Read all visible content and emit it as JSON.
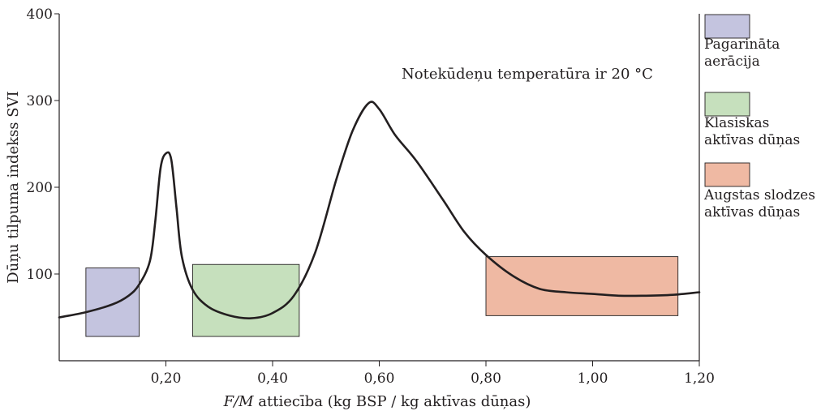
{
  "chart_data": {
    "type": "line",
    "annotation": "Notekūdeņu temperatūra ir 20 °C",
    "xlabel_prefix": "F/M",
    "xlabel_rest": " attiecība (kg BSP / kg aktīvas dūņas)",
    "ylabel": "Dūņu tilpuma indekss SVI",
    "xlim": [
      0,
      1.2
    ],
    "ylim": [
      0,
      400
    ],
    "x_ticks": [
      0.2,
      0.4,
      0.6,
      0.8,
      1.0,
      1.2
    ],
    "x_tick_labels": [
      "0,20",
      "0,40",
      "0,60",
      "0,80",
      "1,00",
      "1,20"
    ],
    "y_ticks": [
      100,
      200,
      300,
      400
    ],
    "y_tick_labels": [
      "100",
      "200",
      "300",
      "400"
    ],
    "grid": false,
    "series": [
      {
        "color": "#231f20",
        "points": [
          [
            0.0,
            50
          ],
          [
            0.05,
            56
          ],
          [
            0.1,
            65
          ],
          [
            0.13,
            75
          ],
          [
            0.15,
            88
          ],
          [
            0.17,
            115
          ],
          [
            0.18,
            160
          ],
          [
            0.19,
            222
          ],
          [
            0.2,
            239
          ],
          [
            0.21,
            232
          ],
          [
            0.22,
            175
          ],
          [
            0.23,
            120
          ],
          [
            0.25,
            82
          ],
          [
            0.28,
            62
          ],
          [
            0.32,
            52
          ],
          [
            0.36,
            49
          ],
          [
            0.4,
            55
          ],
          [
            0.44,
            75
          ],
          [
            0.48,
            125
          ],
          [
            0.52,
            210
          ],
          [
            0.55,
            265
          ],
          [
            0.58,
            297
          ],
          [
            0.6,
            290
          ],
          [
            0.63,
            260
          ],
          [
            0.67,
            230
          ],
          [
            0.72,
            185
          ],
          [
            0.76,
            148
          ],
          [
            0.8,
            122
          ],
          [
            0.85,
            98
          ],
          [
            0.9,
            83
          ],
          [
            0.95,
            79
          ],
          [
            1.0,
            77
          ],
          [
            1.05,
            75
          ],
          [
            1.1,
            75
          ],
          [
            1.15,
            76
          ],
          [
            1.2,
            79
          ]
        ]
      }
    ],
    "regions": [
      {
        "name": "Pagarināta aerācija",
        "x": [
          0.05,
          0.15
        ],
        "y": [
          28,
          107
        ],
        "color": "#c4c4df"
      },
      {
        "name": "Klasiskas aktīvas dūņas",
        "x": [
          0.25,
          0.45
        ],
        "y": [
          28,
          111
        ],
        "color": "#c6e0bd"
      },
      {
        "name": "Augstas slodzes aktīvas dūņas",
        "x": [
          0.8,
          1.16
        ],
        "y": [
          52,
          120
        ],
        "color": "#efb9a3"
      }
    ],
    "legend": {
      "placement": "right",
      "entries": [
        {
          "lines": [
            "Pagarināta",
            "aerācija"
          ],
          "color": "#c4c4df"
        },
        {
          "lines": [
            "Klasiskas",
            "aktīvas dūņas"
          ],
          "color": "#c6e0bd"
        },
        {
          "lines": [
            "Augstas slodzes",
            "aktīvas dūņas"
          ],
          "color": "#efb9a3"
        }
      ]
    }
  }
}
